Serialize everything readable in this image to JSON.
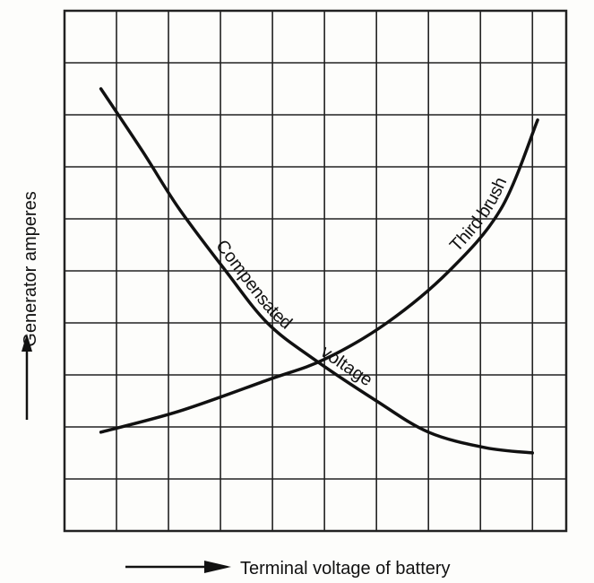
{
  "chart_data": {
    "type": "line",
    "xlabel": "Terminal voltage of battery",
    "ylabel": "Generator amperes",
    "xlim": [
      0,
      9.65
    ],
    "ylim": [
      0,
      10
    ],
    "xticks": [
      0,
      1,
      2,
      3,
      4,
      5,
      6,
      7,
      8,
      9
    ],
    "yticks": [
      0,
      1,
      2,
      3,
      4,
      5,
      6,
      7,
      8,
      9,
      10
    ],
    "grid": true,
    "series": [
      {
        "name": "Third brush",
        "color": "#111111",
        "x": [
          0.7,
          2.2,
          3.9,
          5.0,
          6.2,
          7.4,
          8.4,
          9.1
        ],
        "values": [
          1.9,
          2.3,
          2.9,
          3.3,
          4.0,
          5.0,
          6.2,
          7.9
        ]
      },
      {
        "name": "Compensated voltage",
        "color": "#111111",
        "x": [
          0.7,
          1.5,
          2.2,
          3.1,
          3.9,
          4.8,
          6.0,
          7.0,
          8.1,
          9.0
        ],
        "values": [
          8.5,
          7.3,
          6.2,
          5.0,
          4.0,
          3.3,
          2.5,
          1.9,
          1.6,
          1.5
        ]
      }
    ]
  }
}
